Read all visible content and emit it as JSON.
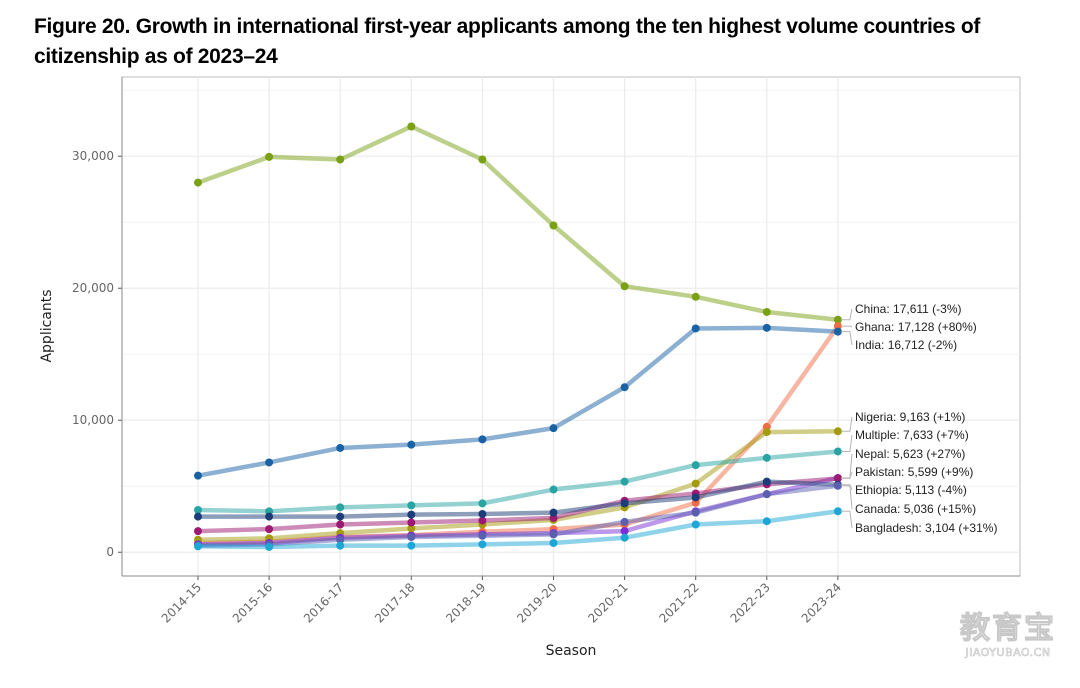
{
  "title": "Figure 20. Growth in international first-year applicants among the ten highest volume countries of citizenship as of 2023–24",
  "watermark": {
    "cn": "教育宝",
    "en": "JIAOYUBAO.CN"
  },
  "chart_data": {
    "type": "line",
    "title": "Figure 20. Growth in international first-year applicants among the ten highest volume countries of citizenship as of 2023–24",
    "xlabel": "Season",
    "ylabel": "Applicants",
    "categories": [
      "2014-15",
      "2015-16",
      "2016-17",
      "2017-18",
      "2018-19",
      "2019-20",
      "2020-21",
      "2021-22",
      "2022-23",
      "2023-24"
    ],
    "ylim": [
      -1800,
      36000
    ],
    "yticks": [
      0,
      10000,
      20000,
      30000
    ],
    "ytick_labels": [
      "0",
      "10,000",
      "20,000",
      "30,000"
    ],
    "grid": true,
    "legend": "direct-labels-right",
    "series": [
      {
        "name": "China",
        "color": "#7aa116",
        "label": "China: 17,611 (-3%)",
        "values": [
          28000,
          29950,
          29750,
          32250,
          29750,
          24750,
          20150,
          19350,
          18200,
          17611
        ]
      },
      {
        "name": "Ghana",
        "color": "#f26b45",
        "label": "Ghana: 17,128 (+80%)",
        "values": [
          700,
          800,
          1150,
          1300,
          1550,
          1750,
          2100,
          3750,
          9500,
          17128
        ]
      },
      {
        "name": "India",
        "color": "#1a62a6",
        "label": "India: 16,712 (-2%)",
        "values": [
          5800,
          6800,
          7900,
          8150,
          8550,
          9400,
          12500,
          16950,
          17000,
          16712
        ]
      },
      {
        "name": "Nigeria",
        "color": "#a49b0f",
        "label": "Nigeria: 9,163 (+1%)",
        "values": [
          950,
          1050,
          1450,
          1800,
          2100,
          2450,
          3400,
          5200,
          9100,
          9163
        ]
      },
      {
        "name": "Multiple",
        "color": "#2aa3a3",
        "label": "Multiple: 7,633 (+7%)",
        "values": [
          3200,
          3100,
          3400,
          3550,
          3700,
          4750,
          5350,
          6600,
          7150,
          7633
        ]
      },
      {
        "name": "Nepal",
        "color": "#7a2fd6",
        "label": "Nepal: 5,623 (+27%)",
        "values": [
          600,
          700,
          1100,
          1250,
          1350,
          1450,
          1600,
          3100,
          4400,
          5623
        ]
      },
      {
        "name": "Pakistan",
        "color": "#9c1a72",
        "label": "Pakistan: 5,599 (+9%)",
        "values": [
          1600,
          1750,
          2100,
          2250,
          2400,
          2600,
          3900,
          4450,
          5150,
          5599
        ]
      },
      {
        "name": "Ethiopia",
        "color": "#1c3d78",
        "label": "Ethiopia: 5,113 (-4%)",
        "values": [
          2700,
          2700,
          2700,
          2850,
          2900,
          3000,
          3700,
          4150,
          5350,
          5113
        ]
      },
      {
        "name": "Canada",
        "color": "#5a5fb0",
        "label": "Canada: 5,036 (+15%)",
        "values": [
          500,
          600,
          950,
          1150,
          1250,
          1350,
          2300,
          3000,
          4400,
          5036
        ]
      },
      {
        "name": "Bangladesh",
        "color": "#1ea7d6",
        "label": "Bangladesh: 3,104 (+31%)",
        "values": [
          450,
          400,
          500,
          500,
          600,
          700,
          1100,
          2100,
          2350,
          3104
        ]
      }
    ]
  }
}
